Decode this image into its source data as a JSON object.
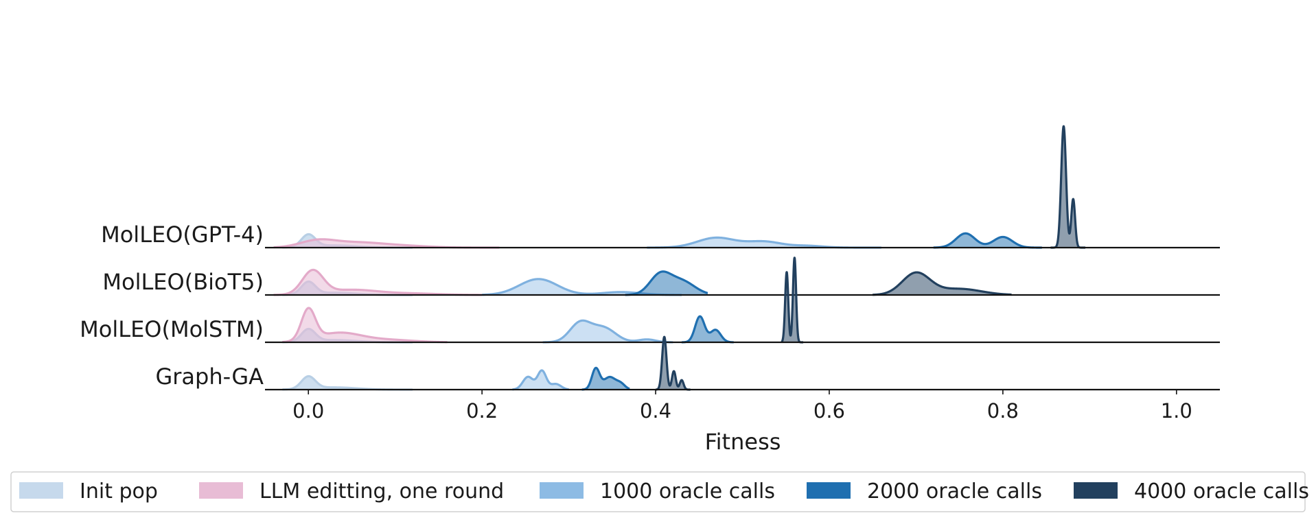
{
  "chart_data": {
    "type": "ridgeline",
    "xlabel": "Fitness",
    "xlim": [
      -0.05,
      1.05
    ],
    "xticks": [
      "0.0",
      "0.2",
      "0.4",
      "0.6",
      "0.8",
      "1.0"
    ],
    "xtick_values": [
      0.0,
      0.2,
      0.4,
      0.6,
      0.8,
      1.0
    ],
    "legend_placement": "bottom",
    "series_styles": [
      {
        "name": "Init pop",
        "color": "#c6d9ec",
        "stroke": "#b8cfe5",
        "fill_opacity": 0.85
      },
      {
        "name": "LLM editting, one round",
        "color": "#e8bcd5",
        "stroke": "#e3aac9",
        "fill_opacity": 0.55
      },
      {
        "name": "1000 oracle calls",
        "color": "#8dbbe4",
        "stroke": "#7fb1df",
        "fill_opacity": 0.45
      },
      {
        "name": "2000 oracle calls",
        "color": "#1f6fb0",
        "stroke": "#1f6fb0",
        "fill_opacity": 0.5
      },
      {
        "name": "4000 oracle calls",
        "color": "#22405e",
        "stroke": "#22405e",
        "fill_opacity": 0.5
      }
    ],
    "ridges": [
      {
        "label": "MolLEO(GPT-4)",
        "densities": [
          {
            "series": "Init pop",
            "peak_height": 0.16,
            "domain": [
              -0.03,
              0.12
            ],
            "components": [
              {
                "m": 0.0,
                "s": 0.008,
                "w": 1.0
              },
              {
                "m": 0.03,
                "s": 0.025,
                "w": 0.18
              }
            ]
          },
          {
            "series": "LLM editting, one round",
            "peak_height": 0.1,
            "domain": [
              -0.04,
              0.22
            ],
            "components": [
              {
                "m": 0.01,
                "s": 0.02,
                "w": 1.0
              },
              {
                "m": 0.055,
                "s": 0.03,
                "w": 0.75
              },
              {
                "m": 0.11,
                "s": 0.03,
                "w": 0.25
              }
            ]
          },
          {
            "series": "1000 oracle calls",
            "peak_height": 0.12,
            "domain": [
              0.39,
              0.66
            ],
            "components": [
              {
                "m": 0.47,
                "s": 0.022,
                "w": 1.0
              },
              {
                "m": 0.525,
                "s": 0.02,
                "w": 0.6
              },
              {
                "m": 0.575,
                "s": 0.018,
                "w": 0.18
              }
            ]
          },
          {
            "series": "2000 oracle calls",
            "peak_height": 0.17,
            "domain": [
              0.72,
              0.845
            ],
            "components": [
              {
                "m": 0.757,
                "s": 0.011,
                "w": 1.0
              },
              {
                "m": 0.8,
                "s": 0.011,
                "w": 0.75
              }
            ]
          },
          {
            "series": "4000 oracle calls",
            "peak_height": 1.45,
            "domain": [
              0.855,
              0.895
            ],
            "components": [
              {
                "m": 0.87,
                "s": 0.0028,
                "w": 1.0
              },
              {
                "m": 0.881,
                "s": 0.0022,
                "w": 0.4
              }
            ]
          }
        ]
      },
      {
        "label": "MolLEO(BioT5)",
        "densities": [
          {
            "series": "Init pop",
            "peak_height": 0.16,
            "domain": [
              -0.03,
              0.12
            ],
            "components": [
              {
                "m": 0.0,
                "s": 0.008,
                "w": 1.0
              },
              {
                "m": 0.03,
                "s": 0.025,
                "w": 0.18
              }
            ]
          },
          {
            "series": "LLM editting, one round",
            "peak_height": 0.3,
            "domain": [
              -0.04,
              0.2
            ],
            "components": [
              {
                "m": 0.005,
                "s": 0.012,
                "w": 1.0
              },
              {
                "m": 0.05,
                "s": 0.03,
                "w": 0.22
              },
              {
                "m": 0.12,
                "s": 0.03,
                "w": 0.06
              }
            ]
          },
          {
            "series": "1000 oracle calls",
            "peak_height": 0.19,
            "domain": [
              0.2,
              0.43
            ],
            "components": [
              {
                "m": 0.265,
                "s": 0.022,
                "w": 1.0
              },
              {
                "m": 0.36,
                "s": 0.022,
                "w": 0.18
              }
            ]
          },
          {
            "series": "2000 oracle calls",
            "peak_height": 0.28,
            "domain": [
              0.365,
              0.46
            ],
            "components": [
              {
                "m": 0.405,
                "s": 0.012,
                "w": 0.85
              },
              {
                "m": 0.43,
                "s": 0.015,
                "w": 0.6
              }
            ]
          },
          {
            "series": "4000 oracle calls",
            "peak_height": 0.27,
            "domain": [
              0.65,
              0.81
            ],
            "components": [
              {
                "m": 0.7,
                "s": 0.016,
                "w": 1.0
              },
              {
                "m": 0.75,
                "s": 0.025,
                "w": 0.28
              }
            ]
          }
        ]
      },
      {
        "label": "MolLEO(MolSTM)",
        "densities": [
          {
            "series": "Init pop",
            "peak_height": 0.16,
            "domain": [
              -0.03,
              0.12
            ],
            "components": [
              {
                "m": 0.0,
                "s": 0.008,
                "w": 1.0
              },
              {
                "m": 0.03,
                "s": 0.025,
                "w": 0.18
              }
            ]
          },
          {
            "series": "LLM editting, one round",
            "peak_height": 0.41,
            "domain": [
              -0.03,
              0.16
            ],
            "components": [
              {
                "m": 0.0,
                "s": 0.008,
                "w": 1.0
              },
              {
                "m": 0.035,
                "s": 0.025,
                "w": 0.3
              },
              {
                "m": 0.09,
                "s": 0.03,
                "w": 0.08
              }
            ]
          },
          {
            "series": "1000 oracle calls",
            "peak_height": 0.26,
            "domain": [
              0.27,
              0.42
            ],
            "components": [
              {
                "m": 0.313,
                "s": 0.012,
                "w": 1.0
              },
              {
                "m": 0.34,
                "s": 0.014,
                "w": 0.75
              },
              {
                "m": 0.39,
                "s": 0.01,
                "w": 0.15
              }
            ]
          },
          {
            "series": "2000 oracle calls",
            "peak_height": 0.31,
            "domain": [
              0.43,
              0.49
            ],
            "components": [
              {
                "m": 0.451,
                "s": 0.0055,
                "w": 1.0
              },
              {
                "m": 0.469,
                "s": 0.006,
                "w": 0.48
              }
            ]
          },
          {
            "series": "4000 oracle calls",
            "peak_height": 1.01,
            "domain": [
              0.545,
              0.57
            ],
            "components": [
              {
                "m": 0.551,
                "s": 0.0018,
                "w": 0.83
              },
              {
                "m": 0.56,
                "s": 0.0018,
                "w": 1.0
              }
            ]
          }
        ]
      },
      {
        "label": "Graph-GA",
        "densities": [
          {
            "series": "Init pop",
            "peak_height": 0.16,
            "domain": [
              -0.03,
              0.12
            ],
            "components": [
              {
                "m": 0.0,
                "s": 0.008,
                "w": 1.0
              },
              {
                "m": 0.03,
                "s": 0.025,
                "w": 0.18
              }
            ]
          },
          {
            "series": "1000 oracle calls",
            "peak_height": 0.23,
            "domain": [
              0.235,
              0.3
            ],
            "components": [
              {
                "m": 0.253,
                "s": 0.006,
                "w": 0.68
              },
              {
                "m": 0.269,
                "s": 0.005,
                "w": 1.0
              },
              {
                "m": 0.285,
                "s": 0.006,
                "w": 0.3
              }
            ]
          },
          {
            "series": "2000 oracle calls",
            "peak_height": 0.26,
            "domain": [
              0.315,
              0.37
            ],
            "components": [
              {
                "m": 0.331,
                "s": 0.0045,
                "w": 1.0
              },
              {
                "m": 0.347,
                "s": 0.007,
                "w": 0.6
              },
              {
                "m": 0.36,
                "s": 0.005,
                "w": 0.25
              }
            ]
          },
          {
            "series": "4000 oracle calls",
            "peak_height": 0.63,
            "domain": [
              0.4,
              0.44
            ],
            "components": [
              {
                "m": 0.41,
                "s": 0.0025,
                "w": 1.0
              },
              {
                "m": 0.421,
                "s": 0.0022,
                "w": 0.35
              },
              {
                "m": 0.43,
                "s": 0.0022,
                "w": 0.18
              }
            ]
          }
        ]
      }
    ]
  }
}
